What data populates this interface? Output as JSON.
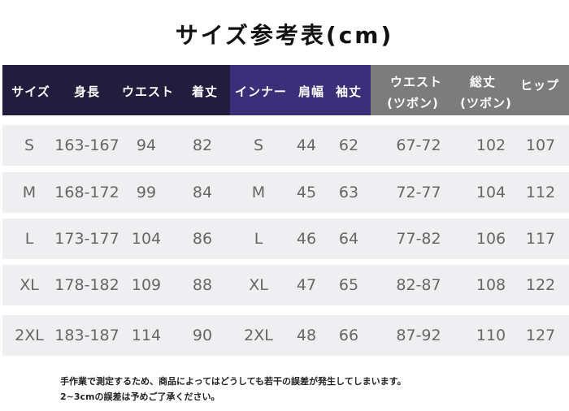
{
  "title": "サイズ参考表(cm)",
  "header": {
    "size": "サイズ",
    "height": "身長",
    "waist": "ウエスト",
    "length": "着丈",
    "inner": "インナー",
    "shoulder": "肩幅",
    "sleeve": "袖丈",
    "pants_waist_line1": "ウエスト",
    "pants_waist_line2": "(ツボン)",
    "pants_length_line1": "総丈",
    "pants_length_line2": "(ツボン)",
    "hip": "ヒップ"
  },
  "rows": [
    {
      "size": "S",
      "height": "163-167",
      "waist": "94",
      "length": "82",
      "inner": "S",
      "shoulder": "44",
      "sleeve": "62",
      "pants_waist": "67-72",
      "pants_length": "102",
      "hip": "107"
    },
    {
      "size": "M",
      "height": "168-172",
      "waist": "99",
      "length": "84",
      "inner": "M",
      "shoulder": "45",
      "sleeve": "63",
      "pants_waist": "72-77",
      "pants_length": "104",
      "hip": "112"
    },
    {
      "size": "L",
      "height": "173-177",
      "waist": "104",
      "length": "86",
      "inner": "L",
      "shoulder": "46",
      "sleeve": "64",
      "pants_waist": "77-82",
      "pants_length": "106",
      "hip": "117"
    },
    {
      "size": "XL",
      "height": "178-182",
      "waist": "109",
      "length": "88",
      "inner": "XL",
      "shoulder": "47",
      "sleeve": "65",
      "pants_waist": "82-87",
      "pants_length": "108",
      "hip": "122"
    },
    {
      "size": "2XL",
      "height": "183-187",
      "waist": "114",
      "length": "90",
      "inner": "2XL",
      "shoulder": "48",
      "sleeve": "66",
      "pants_waist": "87-92",
      "pants_length": "110",
      "hip": "127"
    }
  ],
  "notes": [
    "手作業で測定するため、商品によってはどうしても若干の誤差が発生してしまいます。",
    "2~3cmの誤差は予めご了承ください。"
  ]
}
